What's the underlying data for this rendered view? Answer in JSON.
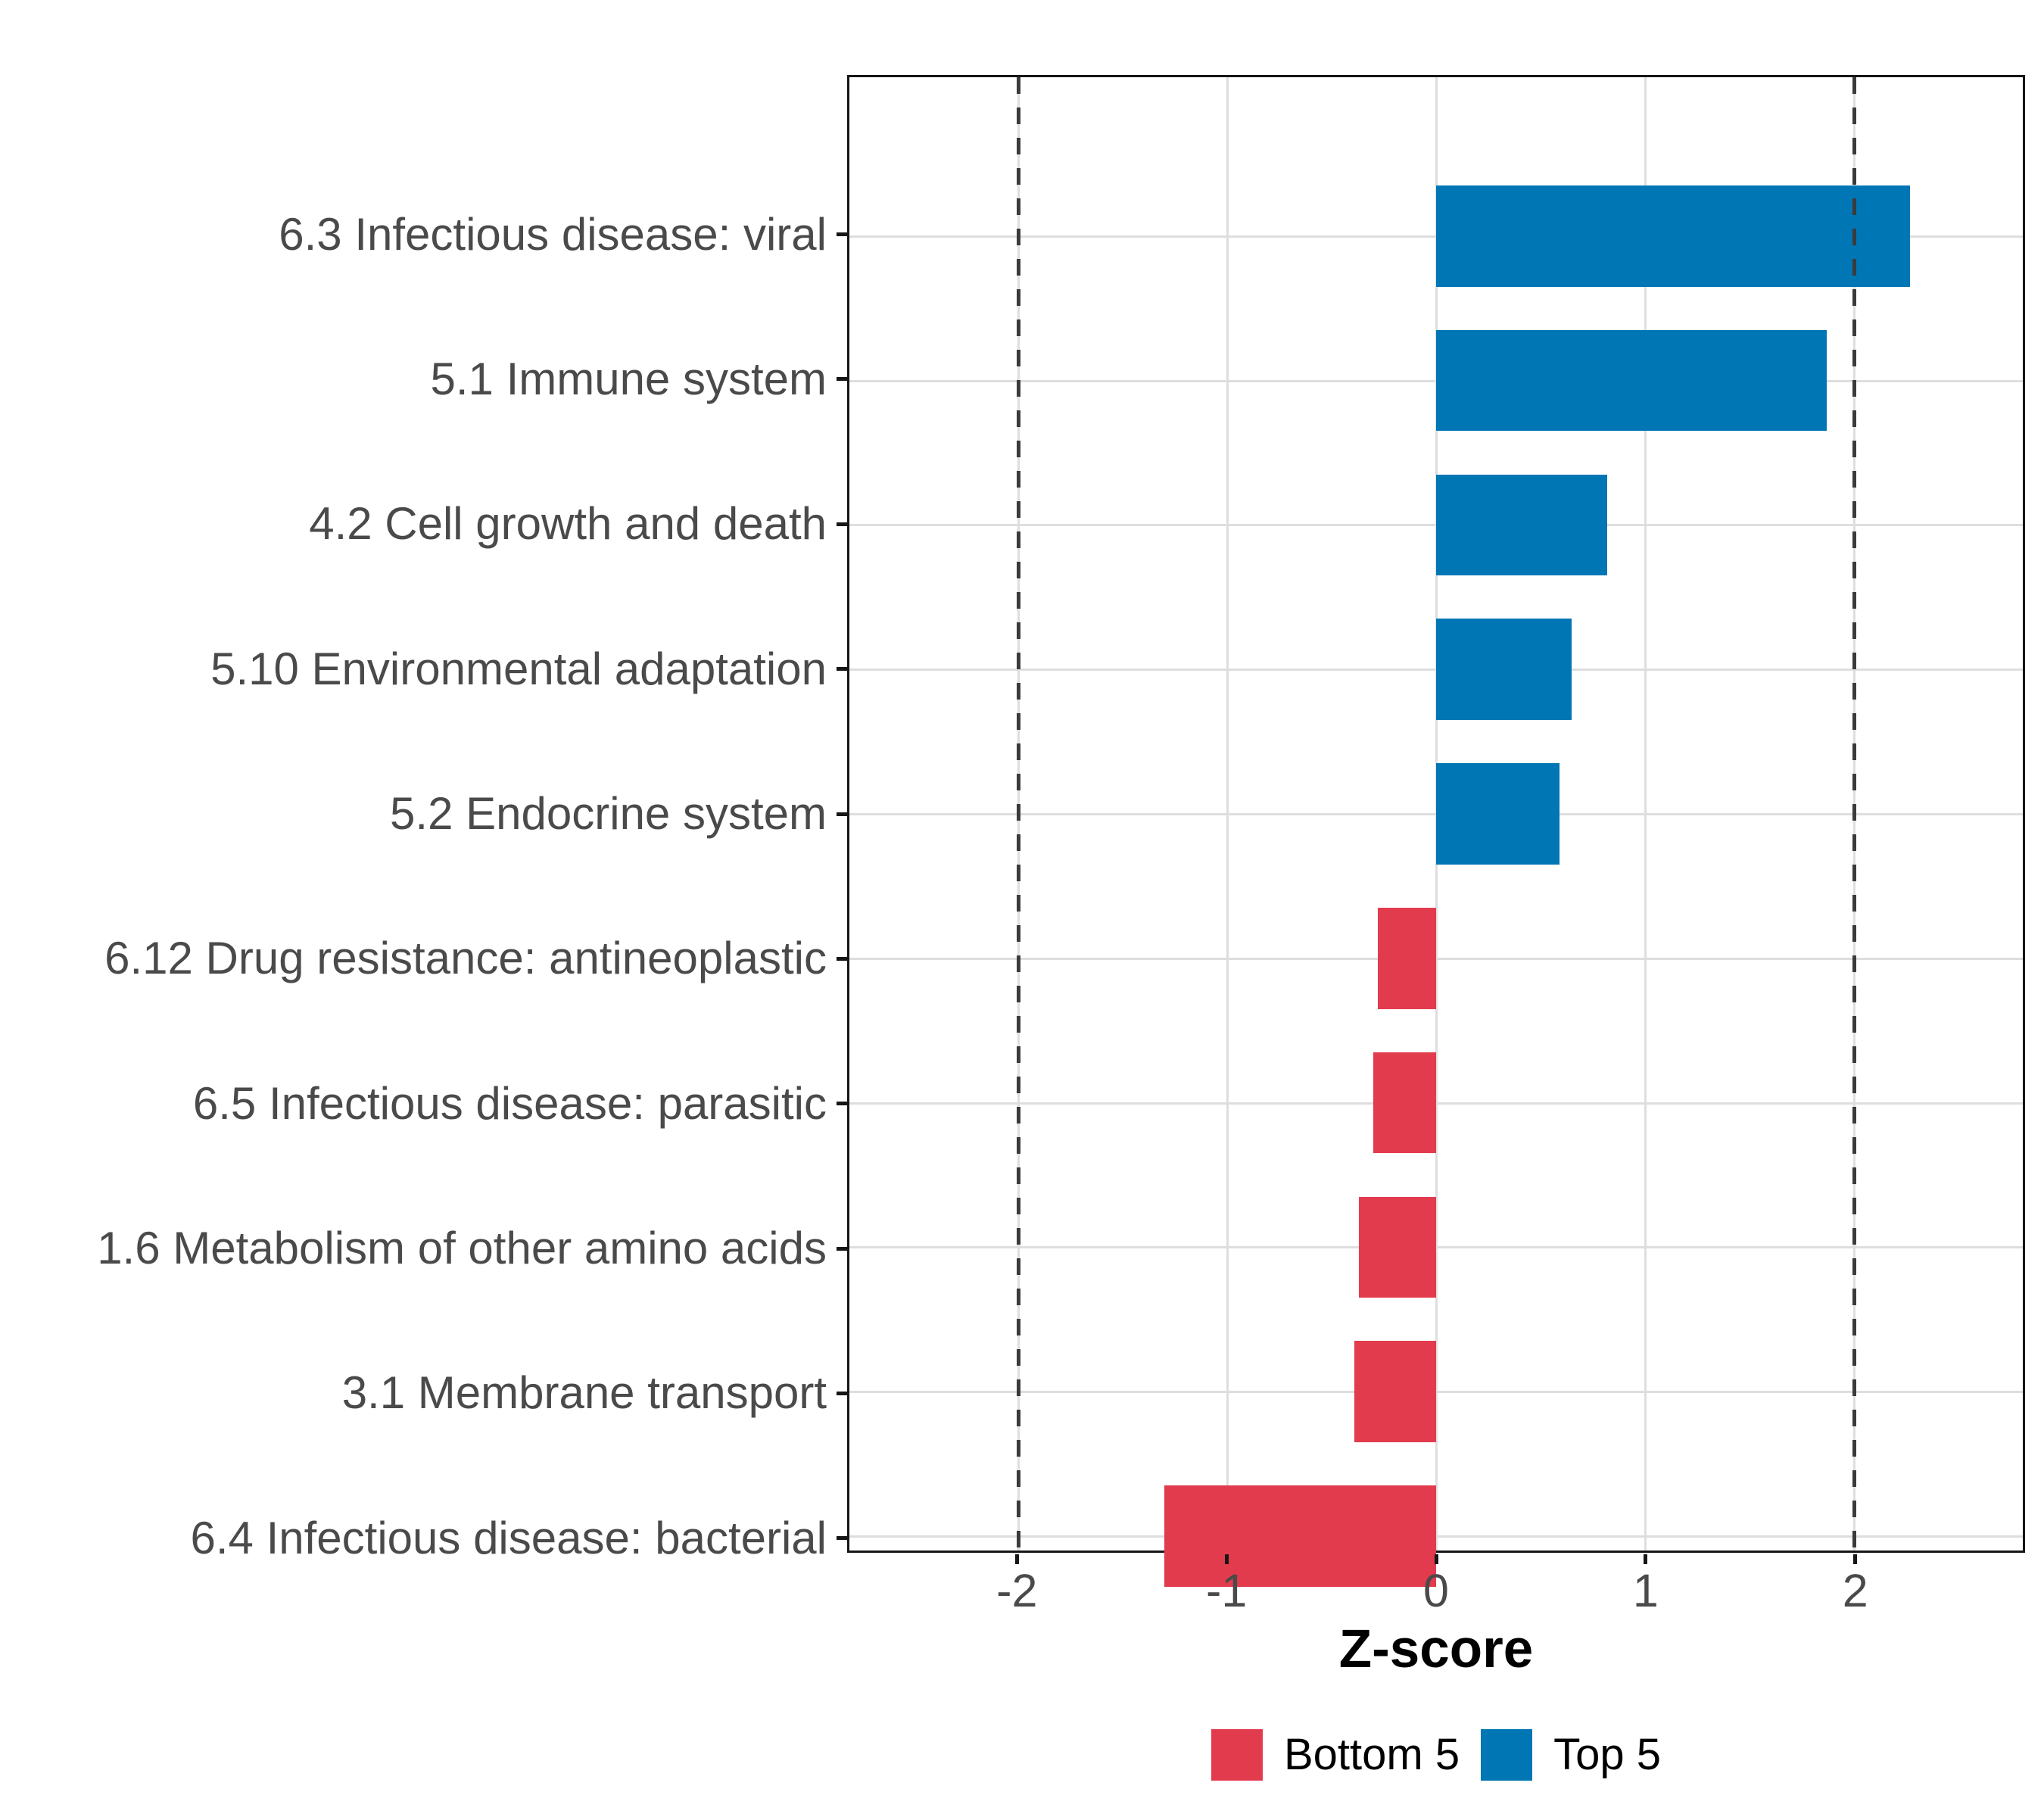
{
  "chart_data": {
    "type": "bar",
    "orientation": "horizontal",
    "title": "",
    "xlabel": "Z-score",
    "ylabel": "",
    "xlim": [
      -2.81,
      2.81
    ],
    "x_ticks": [
      -2,
      -1,
      0,
      1,
      2
    ],
    "reference_lines": [
      -2,
      2
    ],
    "grid": true,
    "legend_position": "bottom",
    "categories": [
      "6.3 Infectious disease: viral",
      "5.1 Immune system",
      "4.2 Cell growth and death",
      "5.10 Environmental adaptation",
      "5.2 Endocrine system",
      "6.12 Drug resistance: antineoplastic",
      "6.5 Infectious disease: parasitic",
      "1.6 Metabolism of other amino acids",
      "3.1 Membrane transport",
      "6.4 Infectious disease: bacterial"
    ],
    "values": [
      2.27,
      1.87,
      0.82,
      0.65,
      0.59,
      -0.28,
      -0.3,
      -0.37,
      -0.39,
      -1.3
    ],
    "groups": [
      "Top 5",
      "Top 5",
      "Top 5",
      "Top 5",
      "Top 5",
      "Bottom 5",
      "Bottom 5",
      "Bottom 5",
      "Bottom 5",
      "Bottom 5"
    ],
    "legend": [
      {
        "label": "Bottom 5",
        "color": "#E33B4E"
      },
      {
        "label": "Top 5",
        "color": "#0076B4"
      }
    ]
  },
  "colors": {
    "bar_positive": "#0076B4",
    "bar_negative": "#E33B4E",
    "gridline": "#DEDEDE",
    "reference_line": "#3B3B3B",
    "panel_border": "#161616",
    "axis_text": "#4A4A4A",
    "title_text": "#000000",
    "background": "#FFFFFF"
  }
}
